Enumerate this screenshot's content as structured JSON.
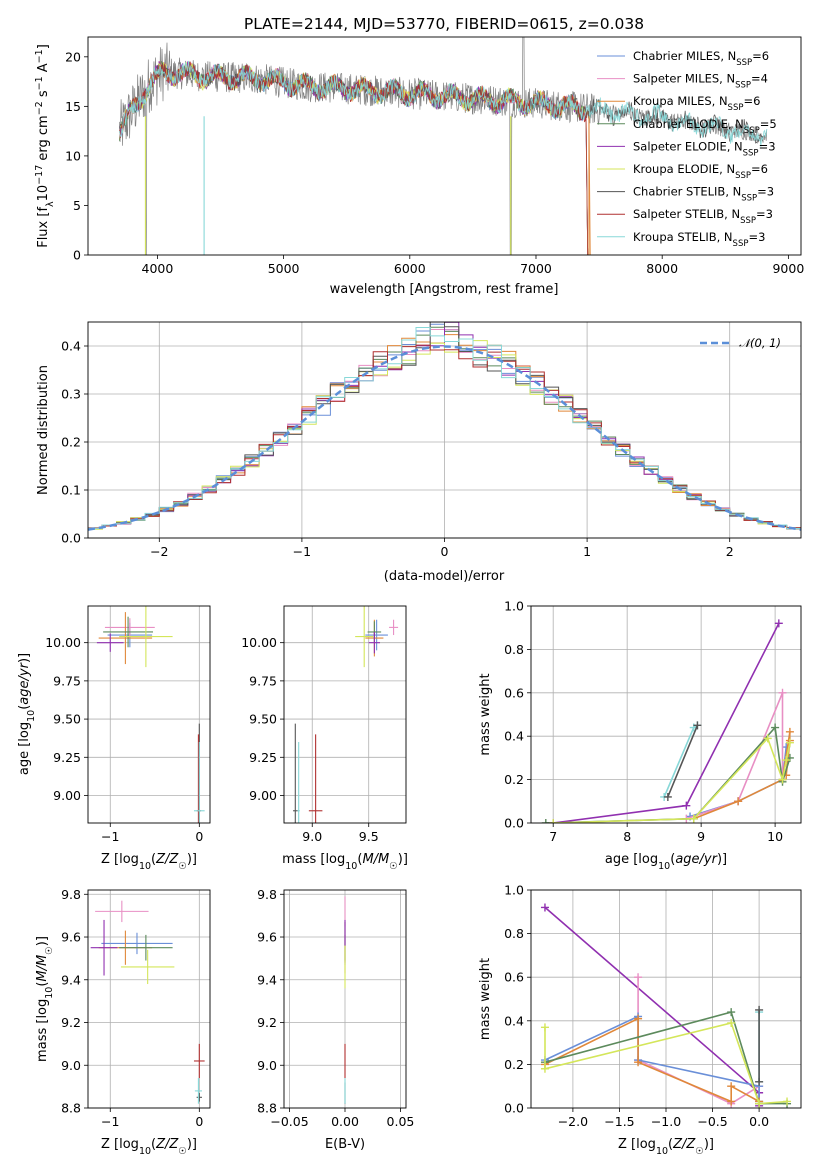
{
  "title": "PLATE=2144, MJD=53770, FIBERID=0615, z=0.038",
  "colors": {
    "data": "#808080",
    "models": [
      "#6a8fd8",
      "#e88fc4",
      "#e0883a",
      "#5c8a5c",
      "#9030b0",
      "#d4e65a",
      "#555555",
      "#b03030",
      "#88d8d8"
    ],
    "gauss": "#5b8fd8"
  },
  "chart_data": [
    {
      "id": "spectrum",
      "type": "line",
      "xlabel": "wavelength [Angstrom, rest frame]",
      "ylabel": "Flux [f_λ10^-17 erg cm^-2 s^-1 A^-1]",
      "xlim": [
        3450,
        9100
      ],
      "ylim": [
        0,
        22
      ],
      "xticks": [
        4000,
        5000,
        6000,
        7000,
        8000,
        9000
      ],
      "yticks": [
        0,
        5,
        10,
        15,
        20
      ],
      "grid": false,
      "legend_position": "top-right",
      "legend": [
        {
          "base": "Chabrier MILES, N",
          "sub": "SSP",
          "tail": "=6"
        },
        {
          "base": "Salpeter MILES, N",
          "sub": "SSP",
          "tail": "=4"
        },
        {
          "base": "Kroupa MILES, N",
          "sub": "SSP",
          "tail": "=6"
        },
        {
          "base": "Chabrier ELODIE, N",
          "sub": "SSP",
          "tail": "=5"
        },
        {
          "base": "Salpeter ELODIE, N",
          "sub": "SSP",
          "tail": "=3"
        },
        {
          "base": "Kroupa ELODIE, N",
          "sub": "SSP",
          "tail": "=6"
        },
        {
          "base": "Chabrier STELIB, N",
          "sub": "SSP",
          "tail": "=3"
        },
        {
          "base": "Salpeter STELIB, N",
          "sub": "SSP",
          "tail": "=3"
        },
        {
          "base": "Kroupa STELIB, N",
          "sub": "SSP",
          "tail": "=3"
        }
      ],
      "continuum": [
        [
          3700,
          12.5
        ],
        [
          3800,
          14.5
        ],
        [
          3950,
          17.5
        ],
        [
          4050,
          18.5
        ],
        [
          4400,
          18.0
        ],
        [
          4800,
          17.8
        ],
        [
          5200,
          17.0
        ],
        [
          5500,
          16.8
        ],
        [
          6000,
          16.3
        ],
        [
          6500,
          15.8
        ],
        [
          7000,
          15.3
        ],
        [
          7400,
          14.8
        ],
        [
          8000,
          13.8
        ],
        [
          8500,
          12.7
        ],
        [
          8800,
          12.1
        ]
      ],
      "model_ranges": [
        {
          "start": 3700,
          "end": 7400
        },
        {
          "start": 3700,
          "end": 7400
        },
        {
          "start": 3700,
          "end": 7420
        },
        {
          "start": 3700,
          "end": 7400
        },
        {
          "start": 3700,
          "end": 7400
        },
        {
          "start": 3700,
          "end": 7400
        },
        {
          "start": 3700,
          "end": 8800
        },
        {
          "start": 3700,
          "end": 7400
        },
        {
          "start": 3700,
          "end": 8830
        }
      ],
      "dropouts": [
        [
          3905,
          0
        ],
        [
          4370,
          0
        ],
        [
          6800,
          0
        ],
        [
          7420,
          0
        ]
      ]
    },
    {
      "id": "residuals",
      "type": "histogram",
      "xlabel": "(data-model)/error",
      "ylabel": "Normed distribution",
      "xlim": [
        -2.5,
        2.5
      ],
      "ylim": [
        0,
        0.45
      ],
      "xticks": [
        -2,
        -1,
        0,
        1,
        2
      ],
      "yticks": [
        0.0,
        0.1,
        0.2,
        0.3,
        0.4
      ],
      "grid": true,
      "legend_position": "top-right",
      "legend": "𝒩(0, 1)",
      "bin_width": 0.1
    },
    {
      "id": "age-vs-Z",
      "type": "scatter",
      "xlabel": "Z [log10(Z/Z☉)]",
      "ylabel": "age  [log10(age/yr)]",
      "xlim": [
        -1.25,
        0.12
      ],
      "ylim": [
        8.82,
        10.24
      ],
      "xticks": [
        -1,
        0
      ],
      "yticks": [
        9.0,
        9.25,
        9.5,
        9.75,
        10.0
      ],
      "grid": true,
      "points": [
        {
          "x": -0.78,
          "y": 10.05,
          "xe": 0.25,
          "ye": 0.08,
          "c": 0
        },
        {
          "x": -0.78,
          "y": 10.1,
          "xe": 0.28,
          "ye": 0.06,
          "c": 1
        },
        {
          "x": -0.83,
          "y": 10.03,
          "xe": 0.3,
          "ye": 0.17,
          "c": 2
        },
        {
          "x": -0.8,
          "y": 10.07,
          "xe": 0.28,
          "ye": 0.1,
          "c": 3
        },
        {
          "x": -1.0,
          "y": 10.0,
          "xe": 0.15,
          "ye": 0.06,
          "c": 4
        },
        {
          "x": -0.6,
          "y": 10.04,
          "xe": 0.3,
          "ye": 0.2,
          "c": 5
        },
        {
          "x": 0.0,
          "y": 8.9,
          "xe": 0.02,
          "ye": 0.57,
          "c": 6
        },
        {
          "x": -0.01,
          "y": 8.9,
          "xe": 0.02,
          "ye": 0.5,
          "c": 7
        },
        {
          "x": 0.0,
          "y": 8.9,
          "xe": 0.06,
          "ye": 0.45,
          "c": 8
        }
      ]
    },
    {
      "id": "age-vs-mass",
      "type": "scatter",
      "xlabel": "mass [log10(M/M☉)]",
      "ylabel": "",
      "xlim": [
        8.75,
        9.83
      ],
      "ylim": [
        8.82,
        10.24
      ],
      "xticks": [
        9.0,
        9.5
      ],
      "yticks": [
        9.0,
        9.25,
        9.5,
        9.75,
        10.0
      ],
      "grid": true,
      "points": [
        {
          "x": 9.57,
          "y": 10.05,
          "xe": 0.1,
          "ye": 0.1,
          "c": 0
        },
        {
          "x": 9.72,
          "y": 10.1,
          "xe": 0.04,
          "ye": 0.05,
          "c": 1
        },
        {
          "x": 9.55,
          "y": 10.03,
          "xe": 0.08,
          "ye": 0.12,
          "c": 2
        },
        {
          "x": 9.55,
          "y": 10.07,
          "xe": 0.06,
          "ye": 0.07,
          "c": 3
        },
        {
          "x": 9.55,
          "y": 10.0,
          "xe": 0.05,
          "ye": 0.07,
          "c": 4
        },
        {
          "x": 9.46,
          "y": 10.04,
          "xe": 0.08,
          "ye": 0.2,
          "c": 5
        },
        {
          "x": 8.85,
          "y": 8.9,
          "xe": 0.02,
          "ye": 0.57,
          "c": 6
        },
        {
          "x": 9.03,
          "y": 8.9,
          "xe": 0.06,
          "ye": 0.5,
          "c": 7
        },
        {
          "x": 8.88,
          "y": 8.9,
          "xe": 0.01,
          "ye": 0.45,
          "c": 8
        }
      ]
    },
    {
      "id": "weight-vs-age",
      "type": "line",
      "xlabel": "age  [log10(age/yr)]",
      "ylabel": "mass weight",
      "xlim": [
        6.7,
        10.35
      ],
      "ylim": [
        0,
        1
      ],
      "xticks": [
        7,
        8,
        9,
        10
      ],
      "yticks": [
        0.0,
        0.2,
        0.4,
        0.6,
        0.8,
        1.0
      ],
      "grid": true,
      "series": [
        {
          "c": 0,
          "x": [
            8.85,
            9.5,
            10.1,
            10.15
          ],
          "y": [
            0.03,
            0.1,
            0.2,
            0.35
          ]
        },
        {
          "c": 1,
          "x": [
            8.8,
            9.5,
            10.1,
            10.1
          ],
          "y": [
            0.02,
            0.1,
            0.6,
            0.2
          ]
        },
        {
          "c": 2,
          "x": [
            8.9,
            9.5,
            10.1,
            10.2,
            10.15,
            10.2
          ],
          "y": [
            0.02,
            0.1,
            0.2,
            0.42,
            0.22,
            0.38
          ]
        },
        {
          "c": 3,
          "x": [
            6.9,
            8.9,
            10.0,
            10.1,
            10.2
          ],
          "y": [
            0.0,
            0.02,
            0.44,
            0.19,
            0.3
          ]
        },
        {
          "c": 4,
          "x": [
            7.0,
            8.8,
            10.05
          ],
          "y": [
            0.0,
            0.08,
            0.92
          ]
        },
        {
          "c": 5,
          "x": [
            7.0,
            8.9,
            9.9,
            10.1,
            10.2,
            10.15
          ],
          "y": [
            0.0,
            0.02,
            0.39,
            0.2,
            0.37,
            0.29
          ]
        },
        {
          "c": 8,
          "x": [
            8.5,
            8.9,
            8.95
          ],
          "y": [
            0.12,
            0.44,
            0.45
          ]
        },
        {
          "c": 6,
          "x": [
            8.55,
            8.95
          ],
          "y": [
            0.12,
            0.45
          ]
        }
      ]
    },
    {
      "id": "mass-vs-Z",
      "type": "scatter",
      "xlabel": "Z [log10(Z/Z☉)]",
      "ylabel": "mass [log10(M/M☉)]",
      "xlim": [
        -1.25,
        0.12
      ],
      "ylim": [
        8.8,
        9.82
      ],
      "xticks": [
        -1,
        0
      ],
      "yticks": [
        8.8,
        9.0,
        9.2,
        9.4,
        9.6,
        9.8
      ],
      "grid": true,
      "points": [
        {
          "x": -0.7,
          "y": 9.57,
          "xe": 0.4,
          "ye": 0.05,
          "c": 0
        },
        {
          "x": -0.87,
          "y": 9.72,
          "xe": 0.3,
          "ye": 0.05,
          "c": 1
        },
        {
          "x": -0.83,
          "y": 9.55,
          "xe": 0.3,
          "ye": 0.08,
          "c": 2
        },
        {
          "x": -0.6,
          "y": 9.55,
          "xe": 0.3,
          "ye": 0.06,
          "c": 3
        },
        {
          "x": -1.07,
          "y": 9.55,
          "xe": 0.15,
          "ye": 0.13,
          "c": 4
        },
        {
          "x": -0.58,
          "y": 9.46,
          "xe": 0.3,
          "ye": 0.08,
          "c": 5
        },
        {
          "x": 0.0,
          "y": 8.85,
          "xe": 0.03,
          "ye": 0.02,
          "c": 6
        },
        {
          "x": 0.0,
          "y": 9.02,
          "xe": 0.06,
          "ye": 0.08,
          "c": 7
        },
        {
          "x": -0.01,
          "y": 8.88,
          "xe": 0.04,
          "ye": 0.06,
          "c": 8
        }
      ]
    },
    {
      "id": "mass-vs-EBV",
      "type": "scatter",
      "xlabel": "E(B-V)",
      "ylabel": "",
      "xlim": [
        -0.055,
        0.055
      ],
      "ylim": [
        8.8,
        9.82
      ],
      "xticks": [
        -0.05,
        0.0,
        0.05
      ],
      "yticks": [
        8.8,
        9.0,
        9.2,
        9.4,
        9.6,
        9.8
      ],
      "grid": true,
      "points": [
        {
          "x": 0.0,
          "y": 9.57,
          "xe": 0.0,
          "ye": 0.1,
          "c": 0
        },
        {
          "x": 0.0,
          "y": 9.72,
          "xe": 0.0,
          "ye": 0.07,
          "c": 1
        },
        {
          "x": 0.0,
          "y": 9.55,
          "xe": 0.0,
          "ye": 0.12,
          "c": 2
        },
        {
          "x": 0.0,
          "y": 9.55,
          "xe": 0.0,
          "ye": 0.06,
          "c": 3
        },
        {
          "x": 0.0,
          "y": 9.58,
          "xe": 0.0,
          "ye": 0.1,
          "c": 4
        },
        {
          "x": 0.0,
          "y": 9.46,
          "xe": 0.0,
          "ye": 0.1,
          "c": 5
        },
        {
          "x": 0.0,
          "y": 8.87,
          "xe": 0.0,
          "ye": 0.05,
          "c": 6
        },
        {
          "x": 0.0,
          "y": 9.02,
          "xe": 0.0,
          "ye": 0.08,
          "c": 7
        },
        {
          "x": 0.0,
          "y": 8.88,
          "xe": 0.0,
          "ye": 0.06,
          "c": 8
        }
      ]
    },
    {
      "id": "weight-vs-Z",
      "type": "line",
      "xlabel": "Z [log10(Z/Z☉)]",
      "ylabel": "mass weight",
      "xlim": [
        -2.45,
        0.45
      ],
      "ylim": [
        0,
        1
      ],
      "xticks": [
        -2.0,
        -1.5,
        -1.0,
        -0.5,
        0.0
      ],
      "yticks": [
        0.0,
        0.2,
        0.4,
        0.6,
        0.8,
        1.0
      ],
      "grid": true,
      "series": [
        {
          "c": 4,
          "x": [
            -2.3,
            0.0,
            0.0
          ],
          "y": [
            0.92,
            0.07,
            0.01
          ]
        },
        {
          "c": 1,
          "x": [
            -1.3,
            -1.3,
            -0.3,
            0.0
          ],
          "y": [
            0.6,
            0.22,
            0.02,
            0.1
          ]
        },
        {
          "c": 0,
          "x": [
            -2.3,
            -1.3,
            -1.3,
            0.0,
            0.0
          ],
          "y": [
            0.22,
            0.42,
            0.22,
            0.1,
            0.03
          ]
        },
        {
          "c": 2,
          "x": [
            -2.3,
            -1.3,
            -1.3,
            -0.3,
            -0.3,
            0.0
          ],
          "y": [
            0.2,
            0.41,
            0.21,
            0.03,
            0.1,
            0.03
          ]
        },
        {
          "c": 3,
          "x": [
            -2.3,
            -0.3,
            0.0,
            0.3
          ],
          "y": [
            0.21,
            0.44,
            0.02,
            0.02
          ]
        },
        {
          "c": 5,
          "x": [
            -2.3,
            -2.3,
            -0.3,
            0.0,
            0.3
          ],
          "y": [
            0.37,
            0.18,
            0.39,
            0.02,
            0.03
          ]
        },
        {
          "c": 8,
          "x": [
            0.0,
            0.0
          ],
          "y": [
            0.44,
            0.12
          ]
        },
        {
          "c": 6,
          "x": [
            0.0,
            0.0
          ],
          "y": [
            0.45,
            0.12
          ]
        }
      ]
    }
  ]
}
